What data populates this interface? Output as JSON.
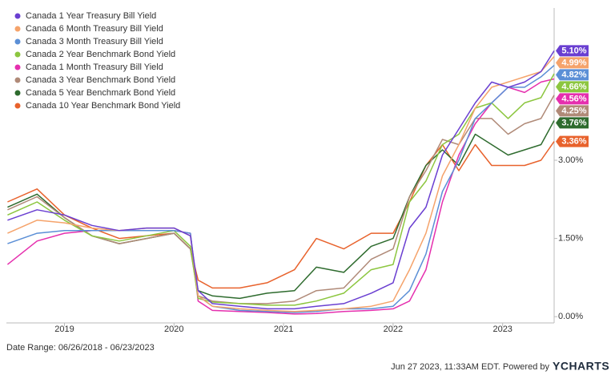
{
  "chart_data": {
    "type": "line",
    "legend": "top-left",
    "grid": false,
    "x": [
      2018.48,
      2018.75,
      2019.0,
      2019.25,
      2019.5,
      2019.75,
      2020.0,
      2020.15,
      2020.22,
      2020.35,
      2020.6,
      2020.85,
      2021.1,
      2021.3,
      2021.55,
      2021.8,
      2022.0,
      2022.15,
      2022.3,
      2022.45,
      2022.6,
      2022.75,
      2022.9,
      2023.05,
      2023.2,
      2023.35,
      2023.47
    ],
    "xlim": [
      2018.47,
      2023.47
    ],
    "xticks": [
      2019,
      2020,
      2021,
      2022,
      2023
    ],
    "ylim": [
      -0.12,
      5.92
    ],
    "yticks": [
      {
        "value": 0,
        "label": "0.00%"
      },
      {
        "value": 1.5,
        "label": "1.50%"
      },
      {
        "value": 3,
        "label": "3.00%"
      }
    ],
    "series": [
      {
        "name": "Canada 1 Year Treasury Bill Yield",
        "color": "#6a3fd1",
        "values": [
          1.85,
          2.05,
          1.95,
          1.75,
          1.65,
          1.7,
          1.7,
          1.55,
          0.5,
          0.25,
          0.2,
          0.15,
          0.15,
          0.2,
          0.25,
          0.45,
          0.65,
          1.7,
          2.1,
          3.1,
          3.6,
          4.1,
          4.5,
          4.4,
          4.5,
          4.7,
          5.1
        ],
        "value_labels": [
          null,
          null,
          null,
          null,
          null,
          null,
          null,
          null,
          null,
          null,
          null,
          null,
          null,
          null,
          null,
          null,
          null,
          null,
          null,
          null,
          null,
          null,
          null,
          null,
          null,
          null,
          "5.10%"
        ]
      },
      {
        "name": "Canada 6 Month Treasury Bill Yield",
        "color": "#f5a36b",
        "values": [
          1.6,
          1.85,
          1.8,
          1.7,
          1.65,
          1.7,
          1.7,
          1.55,
          0.4,
          0.2,
          0.15,
          0.12,
          0.1,
          0.12,
          0.15,
          0.2,
          0.3,
          0.9,
          1.6,
          2.7,
          3.3,
          4.0,
          4.4,
          4.5,
          4.6,
          4.7,
          4.99
        ],
        "value_labels": [
          null,
          null,
          null,
          null,
          null,
          null,
          null,
          null,
          null,
          null,
          null,
          null,
          null,
          null,
          null,
          null,
          null,
          null,
          null,
          null,
          null,
          null,
          null,
          null,
          null,
          null,
          "4.99%"
        ]
      },
      {
        "name": "Canada 3 Month Treasury Bill Yield",
        "color": "#5b8fd6",
        "values": [
          1.4,
          1.6,
          1.65,
          1.65,
          1.65,
          1.65,
          1.65,
          1.6,
          0.4,
          0.2,
          0.12,
          0.1,
          0.08,
          0.1,
          0.15,
          0.15,
          0.2,
          0.5,
          1.2,
          2.4,
          3.0,
          3.8,
          4.1,
          4.4,
          4.4,
          4.6,
          4.82
        ],
        "value_labels": [
          null,
          null,
          null,
          null,
          null,
          null,
          null,
          null,
          null,
          null,
          null,
          null,
          null,
          null,
          null,
          null,
          null,
          null,
          null,
          null,
          null,
          null,
          null,
          null,
          null,
          null,
          "4.82%"
        ]
      },
      {
        "name": "Canada 2 Year Benchmark Bond Yield",
        "color": "#8cc63f",
        "values": [
          1.95,
          2.2,
          1.85,
          1.55,
          1.45,
          1.55,
          1.65,
          1.35,
          0.35,
          0.28,
          0.25,
          0.22,
          0.22,
          0.3,
          0.45,
          0.9,
          1.0,
          2.2,
          2.6,
          3.3,
          3.5,
          4.0,
          4.1,
          3.8,
          4.1,
          4.2,
          4.66
        ],
        "value_labels": [
          null,
          null,
          null,
          null,
          null,
          null,
          null,
          null,
          null,
          null,
          null,
          null,
          null,
          null,
          null,
          null,
          null,
          null,
          null,
          null,
          null,
          null,
          null,
          null,
          null,
          null,
          "4.66%"
        ]
      },
      {
        "name": "Canada 1 Month Treasury Bill Yield",
        "color": "#e52fae",
        "values": [
          1.0,
          1.45,
          1.6,
          1.65,
          1.65,
          1.65,
          1.65,
          1.6,
          0.3,
          0.12,
          0.1,
          0.08,
          0.05,
          0.06,
          0.1,
          0.12,
          0.15,
          0.3,
          0.9,
          2.2,
          3.1,
          3.7,
          4.1,
          4.4,
          4.3,
          4.5,
          4.56
        ],
        "value_labels": [
          null,
          null,
          null,
          null,
          null,
          null,
          null,
          null,
          null,
          null,
          null,
          null,
          null,
          null,
          null,
          null,
          null,
          null,
          null,
          null,
          null,
          null,
          null,
          null,
          null,
          null,
          "4.56%"
        ]
      },
      {
        "name": "Canada 3 Year Benchmark Bond Yield",
        "color": "#b08a78",
        "values": [
          2.05,
          2.3,
          1.9,
          1.55,
          1.4,
          1.5,
          1.6,
          1.3,
          0.4,
          0.3,
          0.25,
          0.25,
          0.3,
          0.5,
          0.55,
          1.1,
          1.3,
          2.3,
          2.8,
          3.4,
          3.3,
          3.8,
          3.8,
          3.5,
          3.7,
          3.8,
          4.25
        ],
        "value_labels": [
          null,
          null,
          null,
          null,
          null,
          null,
          null,
          null,
          null,
          null,
          null,
          null,
          null,
          null,
          null,
          null,
          null,
          null,
          null,
          null,
          null,
          null,
          null,
          null,
          null,
          null,
          "4.25%"
        ]
      },
      {
        "name": "Canada 5 Year Benchmark Bond Yield",
        "color": "#2e6b2e",
        "values": [
          2.1,
          2.35,
          1.9,
          1.55,
          1.4,
          1.5,
          1.6,
          1.3,
          0.5,
          0.4,
          0.35,
          0.45,
          0.5,
          0.95,
          0.85,
          1.35,
          1.5,
          2.3,
          2.9,
          3.2,
          2.9,
          3.5,
          3.3,
          3.1,
          3.2,
          3.3,
          3.76
        ],
        "value_labels": [
          null,
          null,
          null,
          null,
          null,
          null,
          null,
          null,
          null,
          null,
          null,
          null,
          null,
          null,
          null,
          null,
          null,
          null,
          null,
          null,
          null,
          null,
          null,
          null,
          null,
          null,
          "3.76%"
        ]
      },
      {
        "name": "Canada 10 Year Benchmark Bond Yield",
        "color": "#e8622c",
        "values": [
          2.2,
          2.45,
          1.95,
          1.7,
          1.5,
          1.55,
          1.6,
          1.3,
          0.7,
          0.55,
          0.55,
          0.65,
          0.9,
          1.5,
          1.3,
          1.6,
          1.6,
          2.2,
          2.9,
          3.3,
          2.8,
          3.3,
          2.9,
          2.9,
          2.9,
          3.0,
          3.36
        ],
        "value_labels": [
          null,
          null,
          null,
          null,
          null,
          null,
          null,
          null,
          null,
          null,
          null,
          null,
          null,
          null,
          null,
          null,
          null,
          null,
          null,
          null,
          null,
          null,
          null,
          null,
          null,
          null,
          "3.36%"
        ]
      }
    ],
    "footer": {
      "date_range": "Date Range: 06/26/2018 - 06/23/2023",
      "timestamp": "Jun 27 2023, 11:33AM EDT. Powered by",
      "brand": "YCHARTS"
    }
  }
}
